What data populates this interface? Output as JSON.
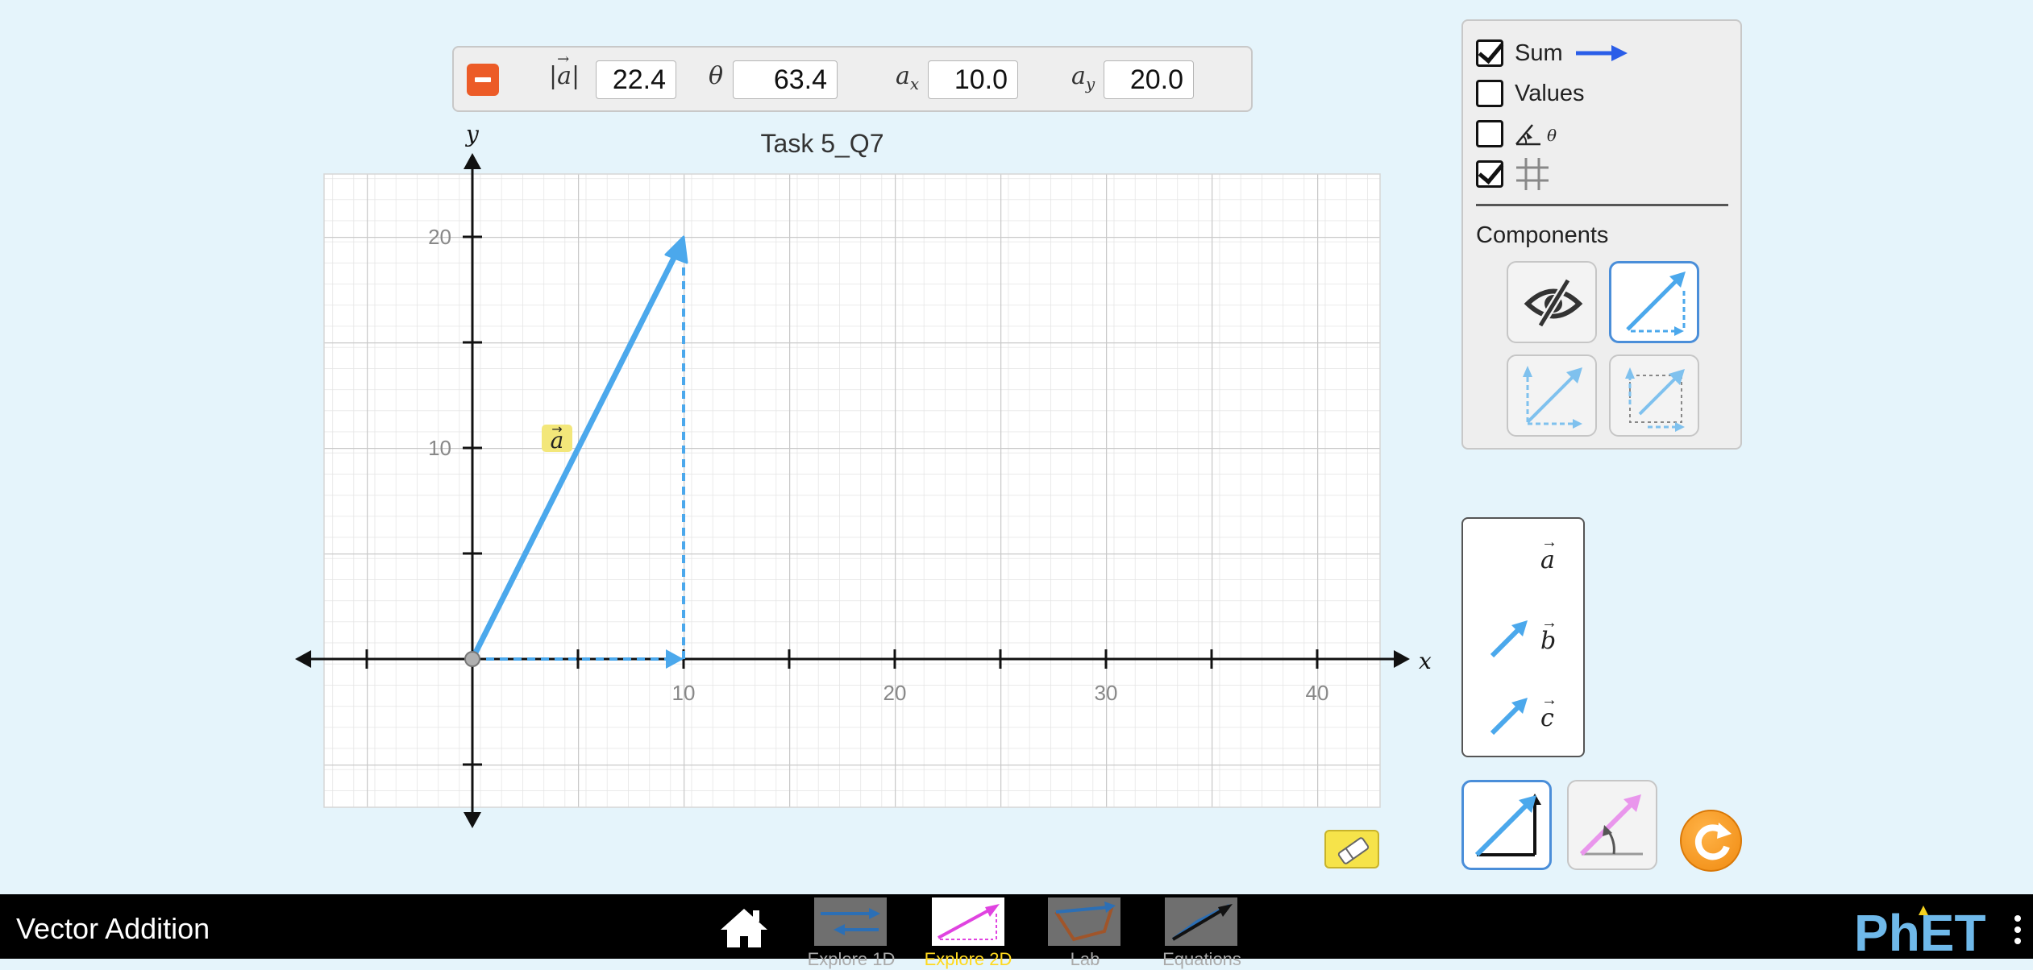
{
  "inspector": {
    "magnitude_label": "|a|",
    "magnitude_value": "22.4",
    "angle_label": "θ",
    "angle_value": "63.4",
    "ax_label": "a",
    "ax_sub": "x",
    "ax_value": "10.0",
    "ay_label": "a",
    "ay_sub": "y",
    "ay_value": "20.0"
  },
  "graph": {
    "title": "Task 5_Q7",
    "x_axis_label": "x",
    "y_axis_label": "y",
    "x_ticks": [
      "10",
      "20",
      "30",
      "40"
    ],
    "y_ticks": [
      "20",
      "10"
    ],
    "vector_label": "a",
    "vector": {
      "x": 10,
      "y": 20
    },
    "colors": {
      "vector": "#4ba8ec",
      "grid_major": "#c9c9c9",
      "grid_minor": "#e6e6e6",
      "label_bg": "#f3e77a"
    }
  },
  "options_panel": {
    "sum_label": "Sum",
    "sum_checked": true,
    "values_label": "Values",
    "values_checked": false,
    "angle_checked": false,
    "angle_icon": "angle-theta-icon",
    "angle_symbol": "θ",
    "grid_checked": true,
    "grid_icon": "grid-icon",
    "sum_color": "#2a5de8",
    "components_title": "Components",
    "component_styles": [
      "invisible",
      "triangle",
      "parallelogram",
      "on-axis"
    ],
    "selected_component_style": "triangle"
  },
  "vector_toolbox": {
    "items": [
      {
        "label": "a",
        "available": false
      },
      {
        "label": "b",
        "available": true
      },
      {
        "label": "c",
        "available": true
      }
    ]
  },
  "controls": {
    "modes": [
      "cartesian",
      "polar"
    ],
    "selected_mode": "cartesian",
    "reset_icon": "reset-icon",
    "eraser_icon": "eraser-icon"
  },
  "navbar": {
    "app_title": "Vector Addition",
    "home_icon": "home-icon",
    "screens": [
      {
        "label": "Explore 1D",
        "active": false
      },
      {
        "label": "Explore 2D",
        "active": true
      },
      {
        "label": "Lab",
        "active": false
      },
      {
        "label": "Equations",
        "active": false
      }
    ],
    "logo_text": "PhET"
  }
}
